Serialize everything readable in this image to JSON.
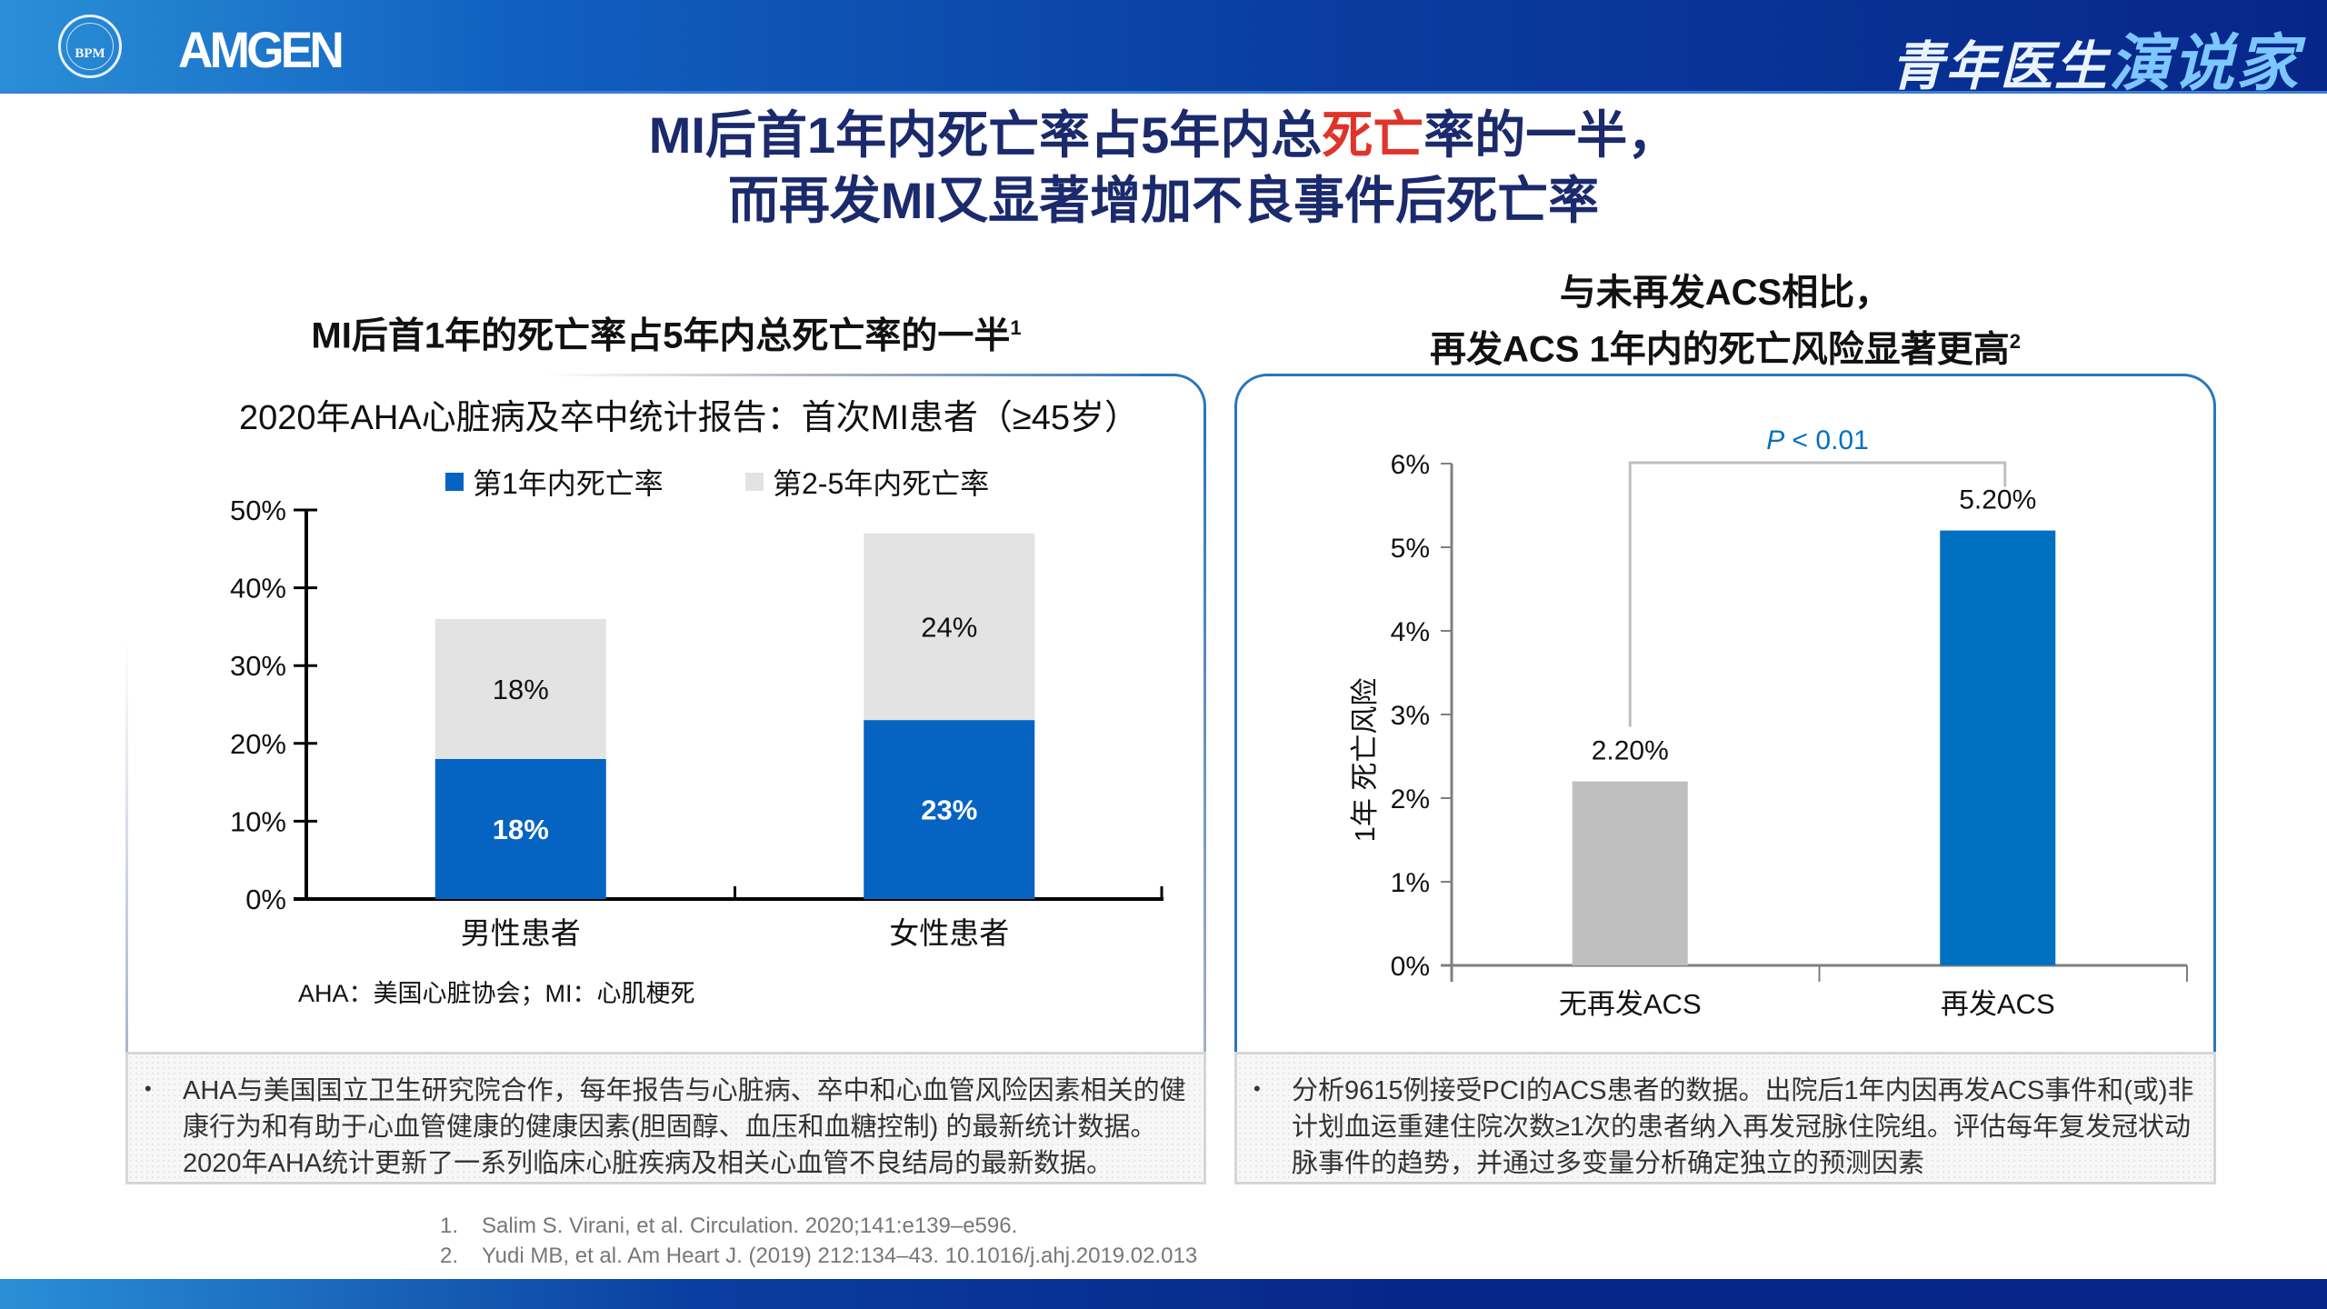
{
  "header": {
    "logo_seal_text": "BPM",
    "company_logo": "AMGEN",
    "brand_part1": "青年医生",
    "brand_part2": "演说家",
    "colors": {
      "banner_start": "#2a8fd6",
      "banner_end": "#07268a",
      "title": "#1a2a6c",
      "highlight": "#e0342a"
    }
  },
  "title": {
    "line1_pre": "MI后首1年内死亡率占5年内总",
    "line1_highlight": "死亡",
    "line1_post": "率的一半，",
    "line2": "而再发MI又显著增加不良事件后死亡率"
  },
  "left_section": {
    "heading": "MI后首1年的死亡率占5年内总死亡率的一半",
    "heading_sup": "1",
    "subtitle": "2020年AHA心脏病及卒中统计报告：首次MI患者（≥45岁）",
    "abbrev_note": "AHA：美国心脏协会；MI：心肌梗死",
    "note_bullet": "•",
    "note_text": "AHA与美国国立卫生研究院合作，每年报告与心脏病、卒中和心血管风险因素相关的健康行为和有助于心血管健康的健康因素(胆固醇、血压和血糖控制) 的最新统计数据。2020年AHA统计更新了一系列临床心脏疾病及相关心血管不良结局的最新数据。"
  },
  "right_section": {
    "heading_line1": "与未再发ACS相比，",
    "heading_line2": "再发ACS 1年内的死亡风险显著更高",
    "heading_sup": "2",
    "note_bullet": "•",
    "note_text": "分析9615例接受PCI的ACS患者的数据。出院后1年内因再发ACS事件和(或)非计划血运重建住院次数≥1次的患者纳入再发冠脉住院组。评估每年复发冠状动脉事件的趋势，并通过多变量分析确定独立的预测因素"
  },
  "references": [
    {
      "num": "1.",
      "text": "Salim S. Virani, et al. Circulation. 2020;141:e139–e596."
    },
    {
      "num": "2.",
      "text": "Yudi MB, et al. Am Heart J. (2019) 212:134–43. 10.1016/j.ahj.2019.02.013"
    }
  ],
  "chart_data": [
    {
      "type": "bar",
      "stacked": true,
      "title": "2020年AHA心脏病及卒中统计报告：首次MI患者（≥45岁）",
      "categories": [
        "男性患者",
        "女性患者"
      ],
      "series": [
        {
          "name": "第1年内死亡率",
          "values": [
            18,
            23
          ],
          "labels": [
            "18%",
            "23%"
          ],
          "color": "#0563c1"
        },
        {
          "name": "第2-5年内死亡率",
          "values": [
            18,
            24
          ],
          "labels": [
            "18%",
            "24%"
          ],
          "color": "#e3e3e3"
        }
      ],
      "ylim": [
        0,
        50
      ],
      "yticks": [
        0,
        10,
        20,
        30,
        40,
        50
      ],
      "ytick_labels": [
        "0%",
        "10%",
        "20%",
        "30%",
        "40%",
        "50%"
      ],
      "xlabel": "",
      "ylabel": "",
      "legend": "top",
      "grid": false
    },
    {
      "type": "bar",
      "title": "",
      "categories": [
        "无再发ACS",
        "再发ACS"
      ],
      "values": [
        2.2,
        5.2
      ],
      "labels": [
        "2.20%",
        "5.20%"
      ],
      "colors": [
        "#bfbfbf",
        "#0070c0"
      ],
      "ylim": [
        0,
        6
      ],
      "yticks": [
        0,
        1,
        2,
        3,
        4,
        5,
        6
      ],
      "ytick_labels": [
        "0%",
        "1%",
        "2%",
        "3%",
        "4%",
        "5%",
        "6%"
      ],
      "ylabel": "1年 死亡风险",
      "xlabel": "",
      "annotation": {
        "p_label": "P",
        "p_text": " < 0.01",
        "color": "#0070c0"
      },
      "grid": false
    }
  ]
}
